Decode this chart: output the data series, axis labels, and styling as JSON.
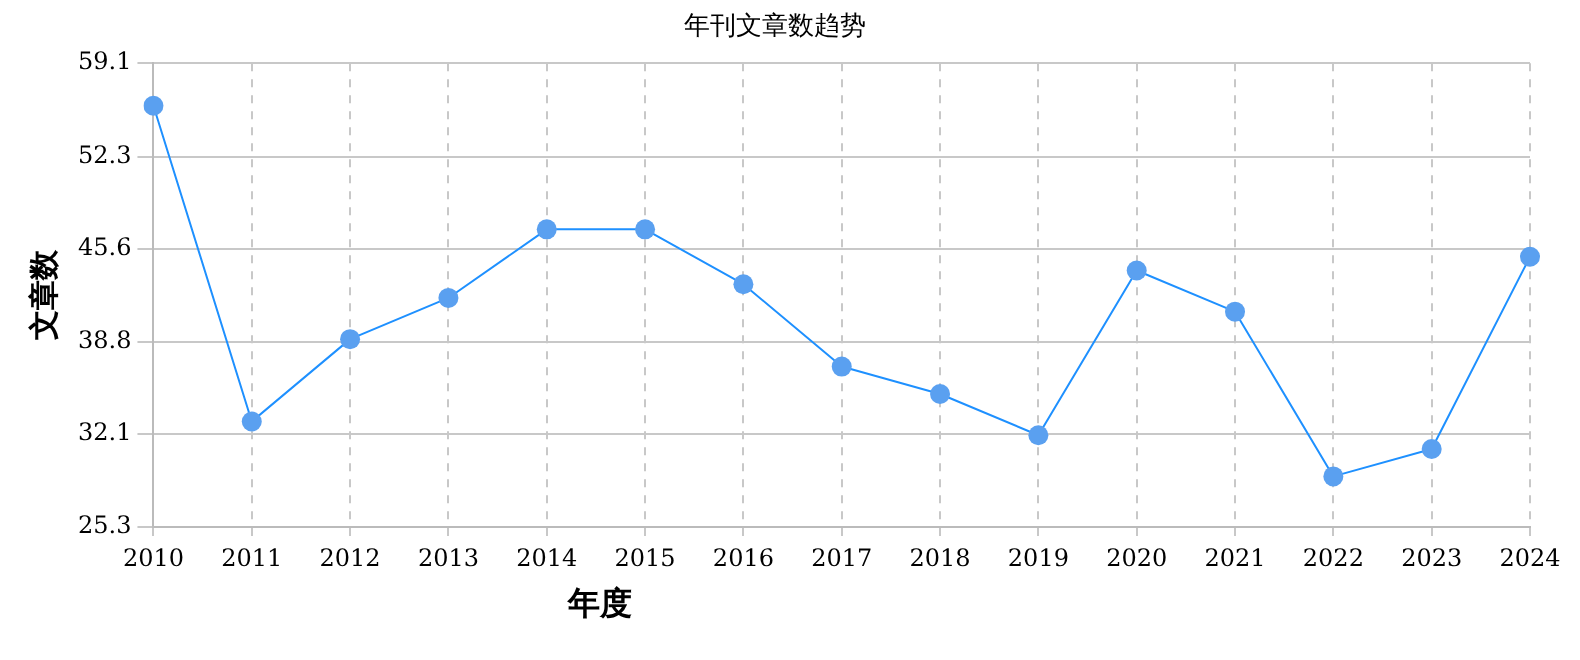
{
  "chart_data": {
    "type": "line",
    "title": "年刊文章数趋势",
    "xlabel": "年度",
    "ylabel": "文章数",
    "categories": [
      "2010",
      "2011",
      "2012",
      "2013",
      "2014",
      "2015",
      "2016",
      "2017",
      "2018",
      "2019",
      "2020",
      "2021",
      "2022",
      "2023",
      "2024"
    ],
    "series": [
      {
        "color": "#1e90ff",
        "values": [
          56,
          33,
          39,
          42,
          47,
          47,
          43,
          37,
          35,
          32,
          44,
          41,
          29,
          31,
          45
        ]
      }
    ],
    "ylim": [
      25.3,
      59.1
    ],
    "yticks": [
      25.3,
      32.1,
      38.8,
      45.6,
      52.3,
      59.1
    ],
    "grid": true,
    "legend": false,
    "marker": "circle",
    "line_style": "solid"
  }
}
